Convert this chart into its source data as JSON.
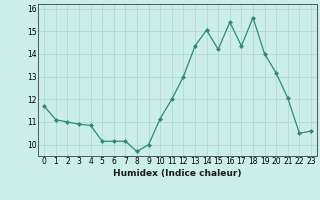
{
  "x": [
    0,
    1,
    2,
    3,
    4,
    5,
    6,
    7,
    8,
    9,
    10,
    11,
    12,
    13,
    14,
    15,
    16,
    17,
    18,
    19,
    20,
    21,
    22,
    23
  ],
  "y": [
    11.7,
    11.1,
    11.0,
    10.9,
    10.85,
    10.15,
    10.15,
    10.15,
    9.7,
    10.0,
    11.15,
    12.0,
    13.0,
    14.35,
    15.05,
    14.2,
    15.4,
    14.35,
    15.6,
    14.0,
    13.15,
    12.05,
    10.5,
    10.6
  ],
  "title": "",
  "xlabel": "Humidex (Indice chaleur)",
  "ylabel": "",
  "line_color": "#2e8b77",
  "marker": "D",
  "marker_size": 2.0,
  "bg_color": "#cceee8",
  "grid_color": "#b0d8d4",
  "xlim": [
    -0.5,
    23.5
  ],
  "ylim": [
    9.5,
    16.2
  ],
  "yticks": [
    10,
    11,
    12,
    13,
    14,
    15,
    16
  ],
  "xticks": [
    0,
    1,
    2,
    3,
    4,
    5,
    6,
    7,
    8,
    9,
    10,
    11,
    12,
    13,
    14,
    15,
    16,
    17,
    18,
    19,
    20,
    21,
    22,
    23
  ],
  "tick_fontsize": 5.5,
  "xlabel_fontsize": 6.5
}
